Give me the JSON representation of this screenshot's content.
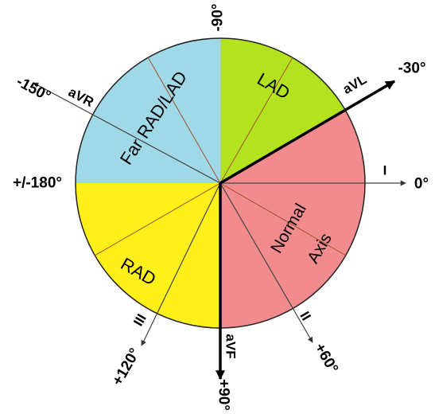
{
  "colors": {
    "far_rad_lad": "#9fd8e6",
    "lad": "#b3e31f",
    "normal_axis": "#f28b8e",
    "rad": "#ffef1a",
    "divider_line": "#a0522d",
    "outline": "#222222",
    "axis_line": "#444444",
    "bold_axis": "#000000"
  },
  "zones": {
    "far_rad_lad": "Far RAD/LAD",
    "lad": "LAD",
    "normal": "Normal",
    "axis": "Axis",
    "rad": "RAD"
  },
  "degrees": {
    "minus_90": "-90°",
    "minus_30": "-30°",
    "minus_150": "-150°",
    "plus_minus_180": "+/-180°",
    "zero": "0°",
    "plus_60": "+60°",
    "plus_90": "+90°",
    "plus_120": "+120°"
  },
  "leads": {
    "avr": "aVR",
    "avl": "aVL",
    "lead_i": "I",
    "lead_ii": "II",
    "lead_iii": "III",
    "avf": "aVF"
  }
}
